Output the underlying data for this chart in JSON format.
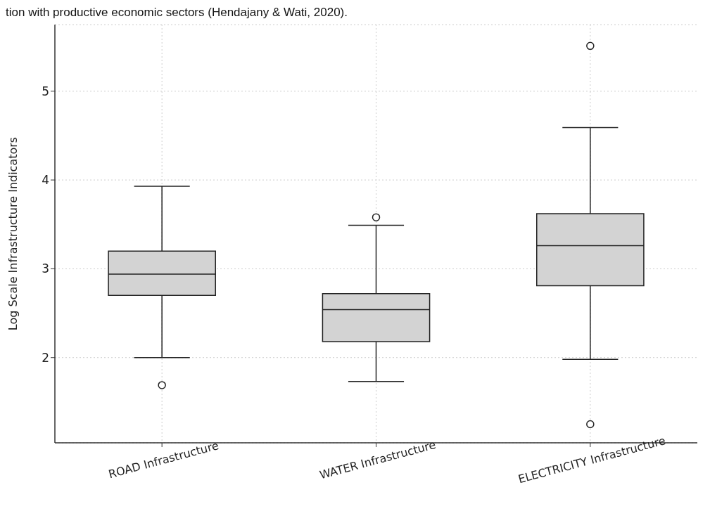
{
  "chart_data": {
    "type": "box",
    "annotations": [
      "tion with productive economic sectors (Hendajany & Wati, 2020)."
    ],
    "ylabel": "Log Scale Infrastructure Indicators",
    "categories": [
      "ROAD Infrastructure",
      "WATER Infrastructure",
      "ELECTRICITY Infrastructure"
    ],
    "series": [
      {
        "color": "#d3d3d3",
        "boxes": [
          {
            "low": 2.0,
            "q1": 2.7,
            "median": 2.94,
            "q3": 3.2,
            "high": 3.93,
            "outliers": [
              1.69
            ]
          },
          {
            "low": 1.73,
            "q1": 2.18,
            "median": 2.54,
            "q3": 2.72,
            "high": 3.49,
            "outliers": [
              3.58
            ]
          },
          {
            "low": 1.98,
            "q1": 2.81,
            "median": 3.26,
            "q3": 3.62,
            "high": 4.59,
            "outliers": [
              5.51,
              1.25
            ]
          }
        ]
      }
    ],
    "ylim": [
      1.04,
      5.75
    ],
    "yticks": [
      2,
      3,
      4,
      5
    ],
    "grid": true
  }
}
